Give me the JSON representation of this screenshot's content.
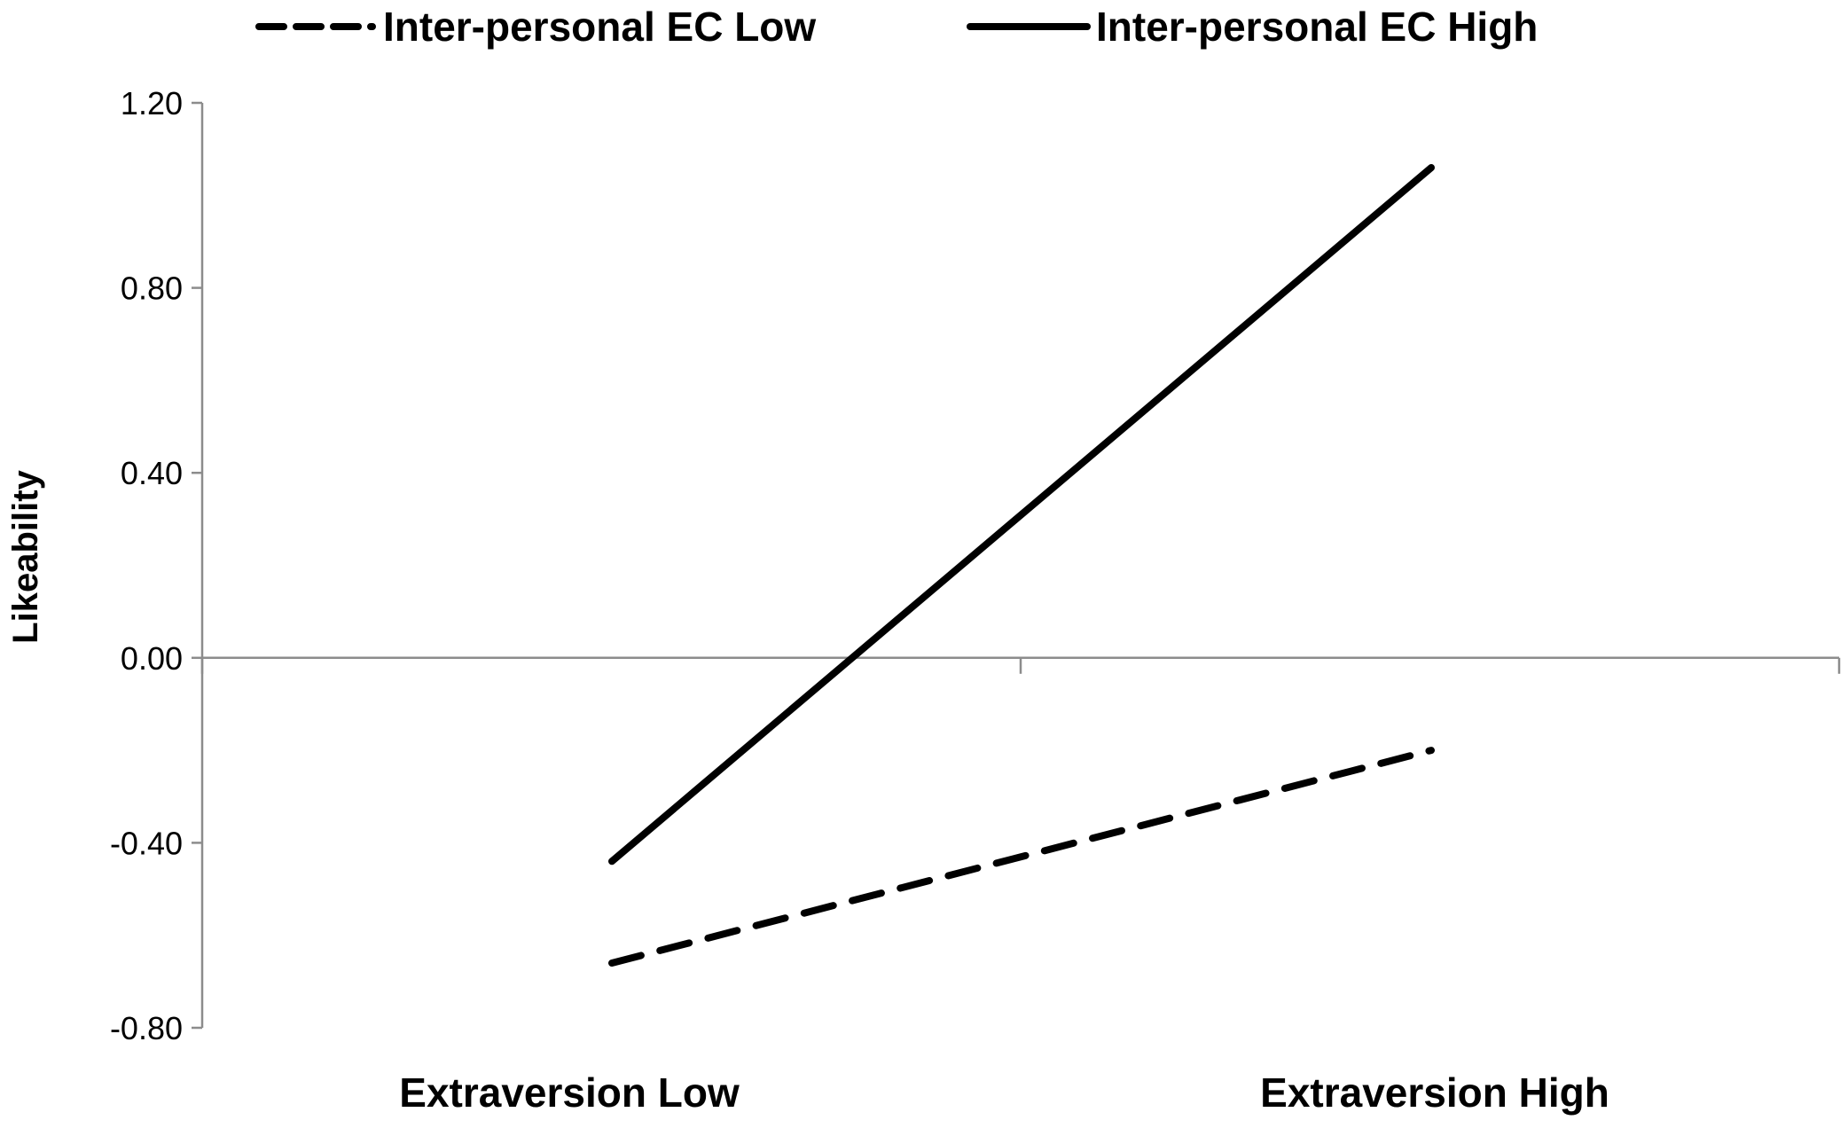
{
  "chart_data": {
    "type": "line",
    "categories": [
      "Extraversion Low",
      "Extraversion High"
    ],
    "series": [
      {
        "name": "Inter-personal EC Low",
        "style": "dashed",
        "values": [
          -0.66,
          -0.2
        ]
      },
      {
        "name": "Inter-personal EC High",
        "style": "solid",
        "values": [
          -0.44,
          1.06
        ]
      }
    ],
    "ylabel": "Likeability",
    "xlabel": "",
    "ylim": [
      -0.8,
      1.2
    ],
    "yticks": [
      -0.8,
      -0.4,
      0.0,
      0.4,
      0.8,
      1.2
    ],
    "ytick_labels": [
      "-0.80",
      "-0.40",
      "0.00",
      "0.40",
      "0.80",
      "1.20"
    ],
    "legend_position": "top",
    "grid": false,
    "line_color": "#000000",
    "axis_color": "#8c8c8c"
  }
}
